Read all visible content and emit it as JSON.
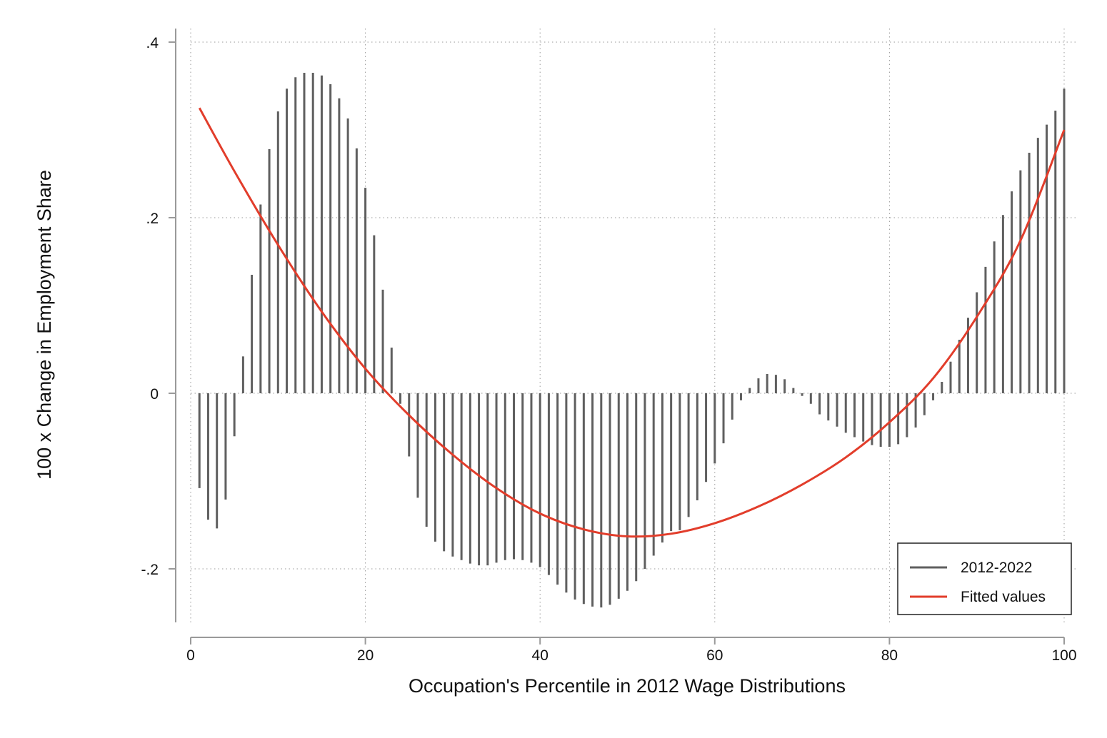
{
  "chart_data": {
    "type": "bar",
    "title": "",
    "xlabel": "Occupation's Percentile in 2012 Wage Distributions",
    "ylabel": "100 x Change in Employment Share",
    "xlim": [
      0,
      100
    ],
    "ylim": [
      -0.26,
      0.4
    ],
    "x_ticks": [
      {
        "value": 0,
        "label": "0"
      },
      {
        "value": 20,
        "label": "20"
      },
      {
        "value": 40,
        "label": "40"
      },
      {
        "value": 60,
        "label": "60"
      },
      {
        "value": 80,
        "label": "80"
      },
      {
        "value": 100,
        "label": "100"
      }
    ],
    "y_ticks": [
      {
        "value": -0.2,
        "label": "-.2"
      },
      {
        "value": 0,
        "label": "0"
      },
      {
        "value": 0.2,
        "label": ".2"
      },
      {
        "value": 0.4,
        "label": ".4"
      }
    ],
    "grid": true,
    "legend_position": "bottom-right",
    "series": [
      {
        "name": "2012-2022",
        "kind": "spike",
        "color": "#5f5f5f",
        "x": [
          1,
          2,
          3,
          4,
          5,
          6,
          7,
          8,
          9,
          10,
          11,
          12,
          13,
          14,
          15,
          16,
          17,
          18,
          19,
          20,
          21,
          22,
          23,
          24,
          25,
          26,
          27,
          28,
          29,
          30,
          31,
          32,
          33,
          34,
          35,
          36,
          37,
          38,
          39,
          40,
          41,
          42,
          43,
          44,
          45,
          46,
          47,
          48,
          49,
          50,
          51,
          52,
          53,
          54,
          55,
          56,
          57,
          58,
          59,
          60,
          61,
          62,
          63,
          64,
          65,
          66,
          67,
          68,
          69,
          70,
          71,
          72,
          73,
          74,
          75,
          76,
          77,
          78,
          79,
          80,
          81,
          82,
          83,
          84,
          85,
          86,
          87,
          88,
          89,
          90,
          91,
          92,
          93,
          94,
          95,
          96,
          97,
          98,
          99,
          100
        ],
        "values": [
          -0.108,
          -0.144,
          -0.154,
          -0.121,
          -0.049,
          0.042,
          0.135,
          0.215,
          0.278,
          0.321,
          0.347,
          0.36,
          0.365,
          0.365,
          0.362,
          0.352,
          0.336,
          0.313,
          0.279,
          0.234,
          0.18,
          0.118,
          0.052,
          -0.012,
          -0.072,
          -0.119,
          -0.152,
          -0.169,
          -0.18,
          -0.186,
          -0.19,
          -0.194,
          -0.196,
          -0.196,
          -0.193,
          -0.19,
          -0.189,
          -0.19,
          -0.193,
          -0.198,
          -0.207,
          -0.218,
          -0.227,
          -0.235,
          -0.24,
          -0.243,
          -0.244,
          -0.241,
          -0.234,
          -0.225,
          -0.214,
          -0.2,
          -0.185,
          -0.17,
          -0.157,
          -0.156,
          -0.141,
          -0.122,
          -0.101,
          -0.08,
          -0.057,
          -0.03,
          -0.008,
          0.006,
          0.017,
          0.022,
          0.021,
          0.016,
          0.006,
          -0.003,
          -0.012,
          -0.024,
          -0.031,
          -0.038,
          -0.045,
          -0.05,
          -0.055,
          -0.059,
          -0.061,
          -0.061,
          -0.058,
          -0.05,
          -0.039,
          -0.025,
          -0.008,
          0.013,
          0.036,
          0.061,
          0.086,
          0.115,
          0.144,
          0.173,
          0.203,
          0.23,
          0.254,
          0.274,
          0.291,
          0.306,
          0.322,
          0.347
        ]
      },
      {
        "name": "Fitted values",
        "kind": "line",
        "color": "#e23d2b",
        "x": [
          1,
          5,
          10,
          15,
          20,
          25,
          30,
          35,
          40,
          45,
          50,
          55,
          60,
          65,
          70,
          75,
          80,
          85,
          90,
          95,
          100
        ],
        "values": [
          0.325,
          0.253,
          0.169,
          0.093,
          0.028,
          -0.025,
          -0.07,
          -0.108,
          -0.137,
          -0.155,
          -0.163,
          -0.16,
          -0.148,
          -0.129,
          -0.104,
          -0.073,
          -0.033,
          0.017,
          0.087,
          0.174,
          0.3
        ]
      }
    ]
  }
}
